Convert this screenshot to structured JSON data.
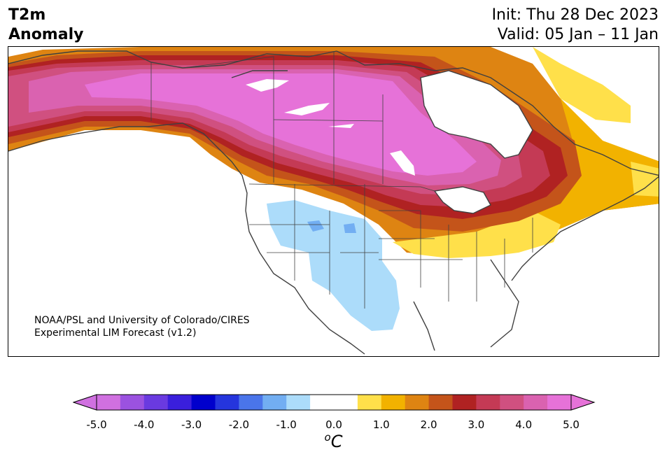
{
  "title": {
    "line1": "T2m",
    "line2": "Anomaly"
  },
  "dates": {
    "init": "Init: Thu 28 Dec 2023",
    "valid": "Valid: 05 Jan – 11 Jan"
  },
  "credit": {
    "line1": "NOAA/PSL and University of Colorado/CIRES",
    "line2": "Experimental LIM Forecast (v1.2)"
  },
  "colorbar": {
    "unit_base": "C",
    "unit_sup": "o",
    "ticks": [
      "-5.0",
      "-4.0",
      "-3.0",
      "-2.0",
      "-1.0",
      "0.0",
      "1.0",
      "2.0",
      "3.0",
      "4.0",
      "5.0"
    ],
    "colors": [
      "#d070e0",
      "#9b52e0",
      "#6a3ae0",
      "#3a1fdc",
      "#0000cc",
      "#2535dd",
      "#4a75ea",
      "#72aef2",
      "#acdcfa",
      "#ffffff",
      "#ffffff",
      "#ffe04a",
      "#f2b200",
      "#de8412",
      "#c4541a",
      "#b02222",
      "#c43a55",
      "#d05080",
      "#da62b0",
      "#e672d8"
    ],
    "extend_low": "#d070e0",
    "extend_high": "#e672d8"
  },
  "map": {
    "region": "North America",
    "colors": {
      "pink": "#e672d8",
      "pink_mid": "#da62b0",
      "rose": "#d05080",
      "crimson": "#c43a55",
      "darkred": "#b02222",
      "rust": "#c4541a",
      "orange": "#de8412",
      "amber": "#f2b200",
      "yellow": "#ffe04a",
      "lightblue": "#acdcfa",
      "blue": "#72aef2",
      "outline": "#404040"
    }
  }
}
